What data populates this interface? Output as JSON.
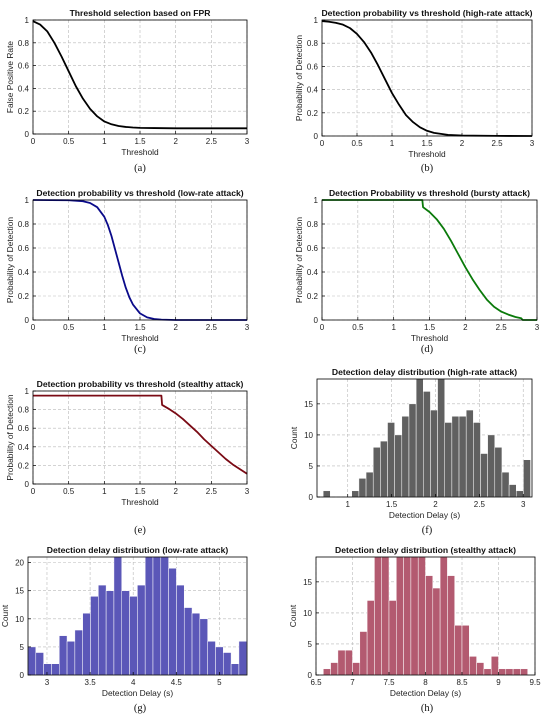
{
  "chart_data": [
    {
      "panel": "a",
      "caption": "(a)",
      "type": "line",
      "title": "Threshold selection based on FPR",
      "xlabel": "Threshold",
      "ylabel": "False Positive Rate",
      "xlim": [
        0,
        3
      ],
      "ylim": [
        0,
        1
      ],
      "xticks": [
        "0",
        "0.5",
        "1",
        "1.5",
        "2",
        "2.5",
        "3"
      ],
      "yticks": [
        "0",
        "0.2",
        "0.4",
        "0.6",
        "0.8",
        "1"
      ],
      "grid": true,
      "series": [
        {
          "color": "#000000",
          "x": [
            0,
            0.1,
            0.2,
            0.3,
            0.4,
            0.5,
            0.6,
            0.7,
            0.8,
            0.9,
            1.0,
            1.1,
            1.2,
            1.3,
            1.4,
            1.5,
            1.7,
            2.0,
            2.5,
            3.0
          ],
          "y": [
            0.99,
            0.96,
            0.9,
            0.8,
            0.68,
            0.55,
            0.42,
            0.31,
            0.22,
            0.155,
            0.11,
            0.085,
            0.07,
            0.062,
            0.057,
            0.054,
            0.052,
            0.05,
            0.05,
            0.05
          ]
        }
      ]
    },
    {
      "panel": "b",
      "caption": "(b)",
      "type": "line",
      "title": "Detection probability vs threshold (high-rate attack)",
      "xlabel": "Threshold",
      "ylabel": "Probability of Detection",
      "xlim": [
        0,
        3
      ],
      "ylim": [
        0,
        1
      ],
      "xticks": [
        "0",
        "0.5",
        "1",
        "1.5",
        "2",
        "2.5",
        "3"
      ],
      "yticks": [
        "0",
        "0.2",
        "0.4",
        "0.6",
        "0.8",
        "1"
      ],
      "grid": true,
      "series": [
        {
          "color": "#000000",
          "x": [
            0,
            0.1,
            0.2,
            0.3,
            0.4,
            0.5,
            0.6,
            0.7,
            0.8,
            0.9,
            1.0,
            1.1,
            1.2,
            1.3,
            1.4,
            1.5,
            1.6,
            1.8,
            2.0,
            2.5,
            3.0
          ],
          "y": [
            0.99,
            0.985,
            0.975,
            0.96,
            0.93,
            0.88,
            0.81,
            0.72,
            0.61,
            0.49,
            0.37,
            0.27,
            0.18,
            0.12,
            0.075,
            0.045,
            0.027,
            0.01,
            0.004,
            0.001,
            0.0
          ]
        }
      ]
    },
    {
      "panel": "c",
      "caption": "(c)",
      "type": "line",
      "title": "Detection probability vs threshold (low-rate attack)",
      "xlabel": "Threshold",
      "ylabel": "Probability of Detection",
      "xlim": [
        0,
        3
      ],
      "ylim": [
        0,
        1
      ],
      "xticks": [
        "0",
        "0.5",
        "1",
        "1.5",
        "2",
        "2.5",
        "3"
      ],
      "yticks": [
        "0",
        "0.2",
        "0.4",
        "0.6",
        "0.8",
        "1"
      ],
      "grid": true,
      "series": [
        {
          "color": "#0a0a8a",
          "x": [
            0,
            0.5,
            0.7,
            0.8,
            0.9,
            1.0,
            1.05,
            1.1,
            1.15,
            1.2,
            1.25,
            1.3,
            1.35,
            1.4,
            1.5,
            1.6,
            1.7,
            1.8,
            2.0,
            2.5,
            3.0
          ],
          "y": [
            1.0,
            0.998,
            0.99,
            0.975,
            0.94,
            0.86,
            0.79,
            0.7,
            0.59,
            0.48,
            0.37,
            0.27,
            0.19,
            0.13,
            0.055,
            0.022,
            0.008,
            0.003,
            0.0,
            0.0,
            0.0
          ]
        }
      ]
    },
    {
      "panel": "d",
      "caption": "(d)",
      "type": "line",
      "title": "Detection Probability vs threshold (bursty attack)",
      "xlabel": "Threshold",
      "ylabel": "Probability of Detection",
      "xlim": [
        0,
        3
      ],
      "ylim": [
        0,
        1
      ],
      "xticks": [
        "0",
        "0.5",
        "1",
        "1.5",
        "2",
        "2.5",
        "3"
      ],
      "yticks": [
        "0",
        "0.2",
        "0.4",
        "0.6",
        "0.8",
        "1"
      ],
      "grid": true,
      "series": [
        {
          "color": "#0a7a0a",
          "x": [
            0,
            1.4,
            1.41,
            1.5,
            1.6,
            1.7,
            1.8,
            1.9,
            2.0,
            2.1,
            2.2,
            2.3,
            2.4,
            2.5,
            2.6,
            2.7,
            2.78,
            2.8,
            2.9,
            3.0
          ],
          "y": [
            1.0,
            1.0,
            0.94,
            0.9,
            0.84,
            0.76,
            0.66,
            0.55,
            0.44,
            0.34,
            0.25,
            0.17,
            0.11,
            0.07,
            0.045,
            0.025,
            0.015,
            0.0,
            0.0,
            0.0
          ]
        }
      ]
    },
    {
      "panel": "e",
      "caption": "(e)",
      "type": "line",
      "title": "Detection probability vs threshold (stealthy attack)",
      "xlabel": "Threshold",
      "ylabel": "Probability of Detection",
      "xlim": [
        0,
        3
      ],
      "ylim": [
        0,
        1
      ],
      "xticks": [
        "0",
        "0.5",
        "1",
        "1.5",
        "2",
        "2.5",
        "3"
      ],
      "yticks": [
        "0",
        "0.2",
        "0.4",
        "0.6",
        "0.8",
        "1"
      ],
      "grid": true,
      "series": [
        {
          "color": "#7a0a14",
          "x": [
            0,
            1.8,
            1.81,
            1.9,
            2.0,
            2.1,
            2.2,
            2.3,
            2.4,
            2.5,
            2.6,
            2.7,
            2.8,
            2.9,
            3.0
          ],
          "y": [
            0.95,
            0.95,
            0.85,
            0.81,
            0.76,
            0.7,
            0.63,
            0.56,
            0.48,
            0.41,
            0.34,
            0.27,
            0.21,
            0.16,
            0.11
          ]
        }
      ]
    },
    {
      "panel": "f",
      "caption": "(f)",
      "type": "bar",
      "title": "Detection delay distribution (high-rate attack)",
      "xlabel": "Detection Delay (s)",
      "ylabel": "Count",
      "xlim": [
        0.65,
        3.1
      ],
      "ylim": [
        0,
        19
      ],
      "xticks": [
        "1",
        "1.5",
        "2",
        "2.5",
        "3"
      ],
      "yticks": [
        "0",
        "5",
        "10",
        "15"
      ],
      "grid": true,
      "color": "#606060",
      "bin_start": 0.72,
      "bin_width": 0.0815,
      "values": [
        1,
        0,
        0,
        0,
        1,
        3,
        4,
        8,
        9,
        12,
        10,
        13,
        15,
        19,
        17,
        14,
        19,
        12,
        13,
        13,
        14,
        12,
        7,
        10,
        8,
        4,
        2,
        1,
        6
      ]
    },
    {
      "panel": "g",
      "caption": "(g)",
      "type": "bar",
      "title": "Detection delay distribution (low-rate attack)",
      "xlabel": "Detection Delay (s)",
      "ylabel": "Count",
      "xlim": [
        2.78,
        5.32
      ],
      "ylim": [
        0,
        21
      ],
      "xticks": [
        "3",
        "3.5",
        "4",
        "4.5",
        "5"
      ],
      "yticks": [
        "0",
        "5",
        "10",
        "15",
        "20"
      ],
      "grid": true,
      "color": "#5b57b8",
      "bin_start": 2.78,
      "bin_width": 0.0906,
      "values": [
        5,
        4,
        2,
        2,
        7,
        6,
        8,
        11,
        14,
        16,
        15,
        21,
        15,
        14,
        16,
        21,
        21,
        21,
        19,
        16,
        12,
        11,
        10,
        6,
        5,
        4,
        2,
        6
      ]
    },
    {
      "panel": "h",
      "caption": "(h)",
      "type": "bar",
      "title": "Detection delay distribution (stealthy attack)",
      "xlabel": "Detection Delay (s)",
      "ylabel": "Count",
      "xlim": [
        6.5,
        9.5
      ],
      "ylim": [
        0,
        19
      ],
      "xticks": [
        "6.5",
        "7",
        "7.5",
        "8",
        "8.5",
        "9",
        "9.5"
      ],
      "yticks": [
        "0",
        "5",
        "10",
        "15"
      ],
      "grid": true,
      "color": "#b35a70",
      "bin_start": 6.6,
      "bin_width": 0.1,
      "values": [
        1,
        2,
        4,
        4,
        2,
        7,
        12,
        19,
        19,
        12,
        19,
        19,
        19,
        19,
        16,
        14,
        19,
        16,
        8,
        8,
        3,
        2,
        1,
        3,
        1,
        1,
        1,
        1
      ]
    }
  ]
}
